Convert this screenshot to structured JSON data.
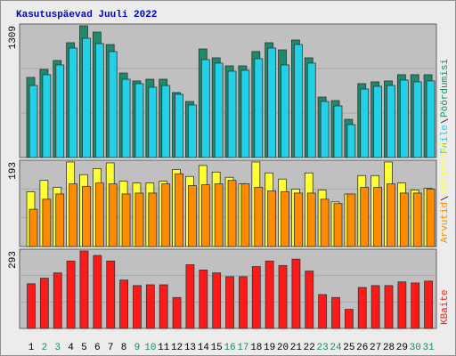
{
  "title": "Kasutuspäevad Juuli 2022",
  "chart_data": [
    {
      "type": "bar",
      "ylim": [
        0,
        1309
      ],
      "yticks": [
        1309
      ],
      "series": [
        {
          "name": "Pöördumisi",
          "color": "#1c8a6b",
          "values": [
            796,
            876,
            964,
            1141,
            1309,
            1247,
            1123,
            840,
            761,
            778,
            778,
            646,
            557,
            1079,
            991,
            911,
            911,
            1053,
            1141,
            1070,
            1168,
            991,
            601,
            566,
            380,
            734,
            752,
            761,
            823,
            823,
            823
          ]
        },
        {
          "name": "Faile",
          "color": "#22d0e8",
          "values": [
            716,
            823,
            920,
            1088,
            1185,
            1132,
            1053,
            778,
            734,
            699,
            716,
            628,
            522,
            973,
            938,
            858,
            867,
            982,
            1088,
            920,
            1123,
            938,
            557,
            513,
            327,
            681,
            708,
            716,
            770,
            752,
            761
          ]
        }
      ]
    },
    {
      "type": "bar",
      "ylim": [
        0,
        193
      ],
      "yticks": [
        193
      ],
      "series": [
        {
          "name": "Külastusi",
          "color": "#ffff33",
          "values": [
            125,
            151,
            135,
            193,
            164,
            178,
            191,
            149,
            145,
            145,
            149,
            176,
            160,
            185,
            170,
            158,
            143,
            193,
            168,
            154,
            131,
            168,
            129,
            102,
            120,
            162,
            162,
            193,
            145,
            129,
            133
          ]
        },
        {
          "name": "Arvutid",
          "color": "#ff8c00",
          "values": [
            85,
            108,
            120,
            143,
            137,
            145,
            143,
            120,
            122,
            122,
            143,
            166,
            139,
            141,
            143,
            151,
            143,
            135,
            127,
            125,
            122,
            122,
            108,
            98,
            120,
            135,
            135,
            143,
            122,
            122,
            131
          ]
        }
      ]
    },
    {
      "type": "bar",
      "ylim": [
        0,
        293
      ],
      "yticks": [
        293
      ],
      "categories": [
        "1",
        "2",
        "3",
        "4",
        "5",
        "6",
        "7",
        "8",
        "9",
        "10",
        "11",
        "12",
        "13",
        "14",
        "15",
        "16",
        "17",
        "18",
        "19",
        "20",
        "21",
        "22",
        "23",
        "24",
        "25",
        "26",
        "27",
        "28",
        "29",
        "30",
        "31"
      ],
      "category_colors": [
        "#000",
        "#1c8a6b",
        "#1c8a6b",
        "#000",
        "#000",
        "#000",
        "#000",
        "#000",
        "#1c8a6b",
        "#1c8a6b",
        "#000",
        "#000",
        "#000",
        "#000",
        "#000",
        "#1c8a6b",
        "#1c8a6b",
        "#000",
        "#000",
        "#000",
        "#000",
        "#000",
        "#1c8a6b",
        "#1c8a6b",
        "#000",
        "#000",
        "#000",
        "#000",
        "#000",
        "#1c8a6b",
        "#1c8a6b"
      ],
      "series": [
        {
          "name": "KBaite",
          "color": "#ff1a1a",
          "values": [
            169,
            190,
            210,
            255,
            293,
            276,
            255,
            183,
            162,
            165,
            165,
            117,
            241,
            221,
            210,
            196,
            196,
            234,
            255,
            238,
            262,
            217,
            128,
            117,
            72,
            155,
            162,
            162,
            176,
            172,
            179
          ]
        }
      ]
    }
  ]
}
